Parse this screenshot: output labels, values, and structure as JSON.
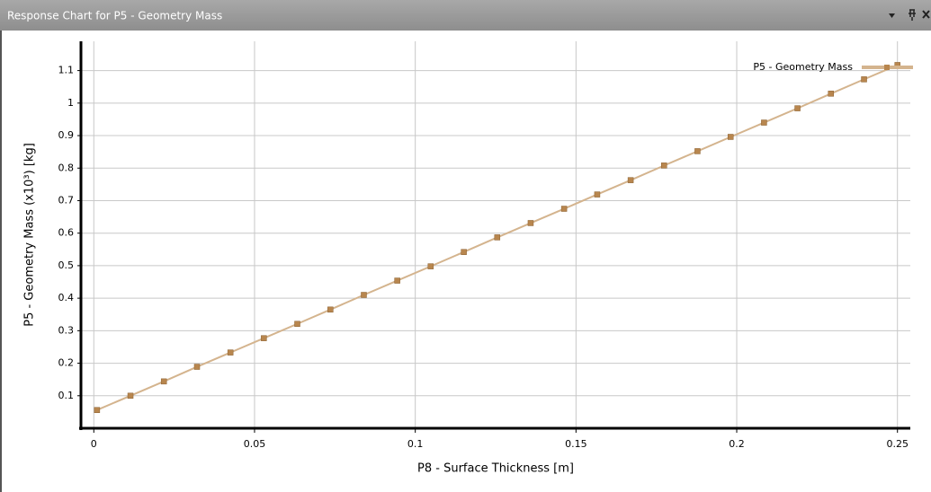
{
  "panel": {
    "title": "Response Chart for P5 - Geometry Mass"
  },
  "chart_data": {
    "type": "line",
    "xlabel": "P8 - Surface Thickness  [m]",
    "ylabel": "P5 - Geometry Mass  (x10³)  [kg]",
    "xlim": [
      -0.004,
      0.254
    ],
    "ylim": [
      0,
      1.19
    ],
    "xticks": [
      0,
      0.05,
      0.1,
      0.15,
      0.2,
      0.25
    ],
    "yticks": [
      0.1,
      0.2,
      0.3,
      0.4,
      0.5,
      0.6,
      0.7,
      0.8,
      0.9,
      1,
      1.1
    ],
    "grid": true,
    "legend": "upper right",
    "x": [
      0.001,
      0.0114,
      0.0218,
      0.0321,
      0.0425,
      0.0529,
      0.0633,
      0.0736,
      0.084,
      0.0944,
      0.1048,
      0.1151,
      0.1255,
      0.1359,
      0.1463,
      0.1566,
      0.167,
      0.1774,
      0.1878,
      0.1981,
      0.2085,
      0.2189,
      0.2293,
      0.2396,
      0.25
    ],
    "series": [
      {
        "name": "P5 - Geometry Mass",
        "color": "#d4b48e",
        "marker_color": "#b8864e",
        "values": [
          0.056,
          0.1,
          0.144,
          0.189,
          0.233,
          0.277,
          0.321,
          0.365,
          0.41,
          0.454,
          0.498,
          0.542,
          0.587,
          0.631,
          0.675,
          0.719,
          0.763,
          0.808,
          0.852,
          0.896,
          0.94,
          0.984,
          1.029,
          1.073,
          1.117
        ]
      }
    ]
  }
}
